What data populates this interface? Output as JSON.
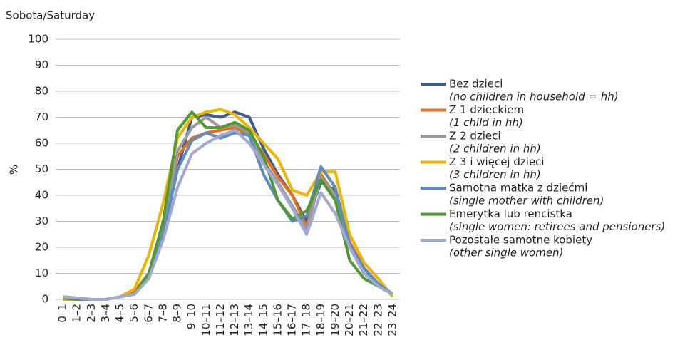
{
  "chart_data": {
    "type": "line",
    "title": "Sobota/Saturday",
    "y_label": "%",
    "categories": [
      "0–1",
      "1–2",
      "2–3",
      "3–4",
      "4–5",
      "5–6",
      "6–7",
      "7–8",
      "8–9",
      "9–10",
      "10–11",
      "11–12",
      "12–13",
      "13–14",
      "14–15",
      "15–16",
      "16–17",
      "17–18",
      "18–19",
      "19–20",
      "20–21",
      "21–22",
      "22–23",
      "23–24"
    ],
    "series": [
      {
        "name": "Bez dzieci",
        "description": "(no children in household = hh)",
        "color": "#3c5a98",
        "values": [
          1,
          0.5,
          0,
          0,
          1,
          2,
          9,
          25,
          50,
          70,
          71,
          70,
          72,
          70,
          58,
          48,
          40,
          30,
          45,
          42,
          20,
          10,
          6,
          2
        ]
      },
      {
        "name": "Z 1 dzieckiem",
        "description": "(1 child in hh)",
        "color": "#e0701e",
        "values": [
          1,
          0.5,
          0,
          0,
          1,
          3,
          10,
          28,
          55,
          62,
          64,
          65,
          66,
          63,
          56,
          47,
          40,
          28,
          48,
          40,
          22,
          12,
          6,
          2
        ]
      },
      {
        "name": "Z 2 dzieci",
        "description": "(2 children in hh)",
        "color": "#9a9a9a",
        "values": [
          0.5,
          0,
          0,
          0,
          1,
          2,
          9,
          27,
          57,
          66,
          70,
          66,
          67,
          64,
          53,
          45,
          36,
          27,
          47,
          40,
          20,
          12,
          6,
          2
        ]
      },
      {
        "name": "Z 3 i więcej dzieci",
        "description": "(3 children in hh)",
        "color": "#f0b400",
        "values": [
          0,
          0,
          0,
          0,
          1,
          4,
          17,
          37,
          62,
          70,
          72,
          73,
          71,
          66,
          60,
          54,
          42,
          40,
          49,
          49,
          25,
          14,
          8,
          1
        ]
      },
      {
        "name": "Samotna matka z dziećmi",
        "description": "(single mother with children)",
        "color": "#5b8bc0",
        "values": [
          1,
          0.5,
          0,
          0,
          1,
          2,
          8,
          25,
          50,
          61,
          64,
          62,
          64,
          63,
          48,
          38,
          30,
          32,
          51,
          43,
          21,
          12,
          6,
          2
        ]
      },
      {
        "name": "Emerytka lub rencistka",
        "description": "(single women: retirees and pensioners)",
        "color": "#4e9a30",
        "values": [
          0.5,
          0,
          0,
          0,
          1,
          2,
          10,
          30,
          65,
          72,
          66,
          66,
          68,
          65,
          55,
          38,
          31,
          34,
          46,
          38,
          15,
          8,
          5,
          2
        ]
      },
      {
        "name": "Pozostałe samotne kobiety",
        "description": "(other single women)",
        "color": "#a0a9d6",
        "values": [
          1,
          0.5,
          0,
          0,
          1,
          2,
          8,
          23,
          43,
          56,
          60,
          63,
          65,
          60,
          52,
          44,
          35,
          25,
          41,
          33,
          20,
          10,
          5,
          2
        ]
      }
    ],
    "ylim": [
      0,
      100
    ],
    "yticks": [
      0,
      10,
      20,
      30,
      40,
      50,
      60,
      70,
      80,
      90,
      100
    ],
    "grid": true
  }
}
